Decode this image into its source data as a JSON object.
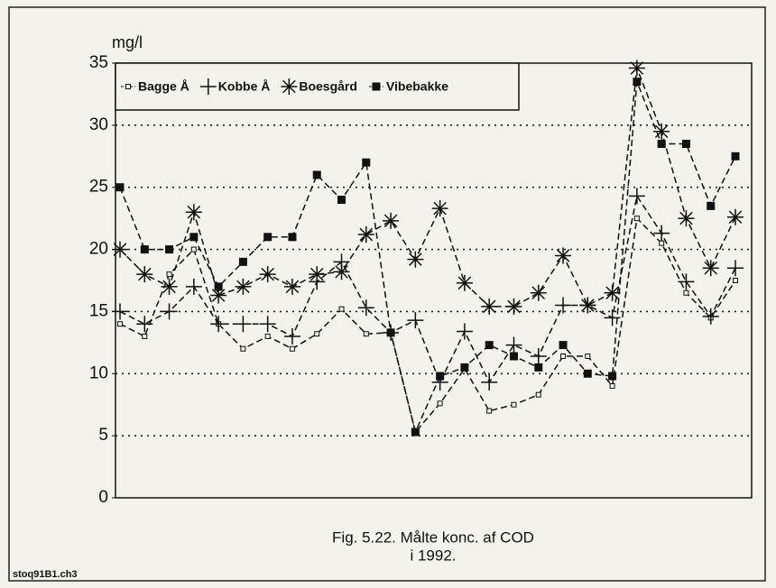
{
  "chart_data": {
    "type": "line",
    "y_label": "mg/l",
    "caption": [
      "Fig. 5.22. Målte konc. af COD",
      "i 1992."
    ],
    "footer": "stoq91B1.ch3",
    "categories": [
      null,
      null,
      null,
      null,
      null,
      null,
      null,
      null,
      null,
      null,
      null,
      null,
      null,
      null,
      null,
      null,
      null,
      null,
      null,
      null,
      null,
      null,
      null,
      null,
      null,
      null
    ],
    "ylim": [
      0,
      35
    ],
    "yticks": [
      0,
      5,
      10,
      15,
      20,
      25,
      30,
      35
    ],
    "grid": true,
    "legend": "top-left",
    "series": [
      {
        "name": "Bagge Å",
        "color": "#111111",
        "marker": "open-square",
        "values": [
          14,
          13,
          18,
          20,
          14,
          12,
          13,
          12,
          13.2,
          15.2,
          13.2,
          13.3,
          5.3,
          7.6,
          10.4,
          7,
          7.5,
          8.3,
          11.4,
          11.4,
          9,
          22.5,
          20.5,
          16.5,
          14.5,
          17.5
        ]
      },
      {
        "name": "Kobbe Å",
        "color": "#111111",
        "marker": "plus",
        "values": [
          15,
          14,
          15,
          17,
          14,
          14,
          14,
          13,
          17.4,
          19,
          15.3,
          13.3,
          14.3,
          9.3,
          13.4,
          9.3,
          12.3,
          11.4,
          15.5,
          15.5,
          14.5,
          24.3,
          21.3,
          17.4,
          14.6,
          18.5
        ]
      },
      {
        "name": "Boesgård",
        "color": "#111111",
        "marker": "asterisk",
        "values": [
          20,
          18,
          17,
          23,
          16.3,
          17,
          18,
          17,
          18,
          18.2,
          21.2,
          22.3,
          19.2,
          23.3,
          17.3,
          15.4,
          15.4,
          16.5,
          19.5,
          15.5,
          16.5,
          34.6,
          29.5,
          22.5,
          18.5,
          22.6
        ]
      },
      {
        "name": "Vibebakke",
        "color": "#111111",
        "marker": "filled-square",
        "values": [
          25,
          20,
          20,
          21,
          17,
          19,
          21,
          21,
          26,
          24,
          27,
          13.3,
          5.3,
          9.8,
          10.5,
          12.3,
          11.4,
          10.5,
          12.3,
          10,
          9.8,
          33.5,
          28.5,
          28.5,
          23.5,
          27.5
        ]
      }
    ]
  }
}
